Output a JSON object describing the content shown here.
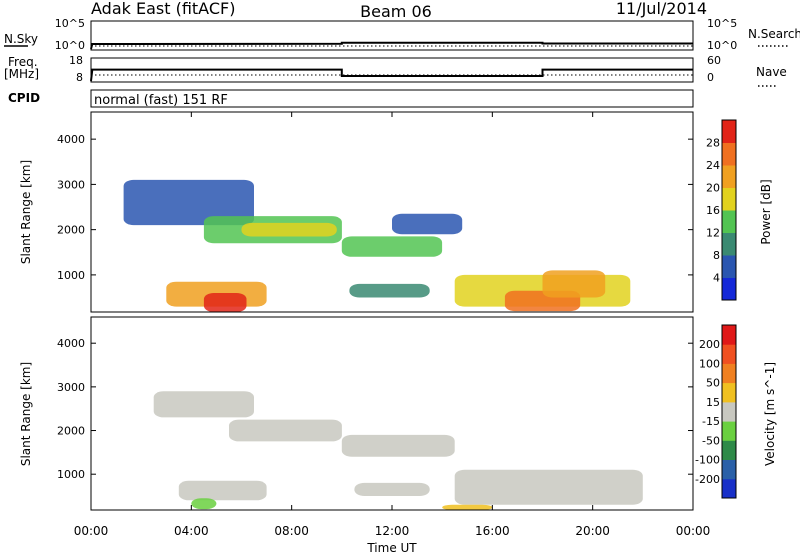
{
  "header": {
    "station": "Adak East (fitACF)",
    "beam": "Beam 06",
    "date": "11/Jul/2014"
  },
  "noise_panel": {
    "left_label": "N.Sky",
    "left_ticks": [
      "10^5",
      "10^0"
    ],
    "right_ticks": [
      "10^5",
      "10^0"
    ],
    "right_label": "N.Search"
  },
  "freq_panel": {
    "left_label_line1": "Freq.",
    "left_label_line2": "[MHz]",
    "left_ticks": [
      "18",
      "8"
    ],
    "right_ticks": [
      "60",
      "0"
    ],
    "right_label": "Nave"
  },
  "cpid_panel": {
    "label": "CPID",
    "text": "normal (fast) 151 RF"
  },
  "chart_data": [
    {
      "type": "line",
      "panel": "noise",
      "series": [
        {
          "name": "N.Sky",
          "x_hours": [
            0,
            0.05,
            10.0,
            10.0,
            18.0,
            18.0,
            24.0
          ],
          "values_log10": [
            0.0,
            1.0,
            1.05,
            1.25,
            1.25,
            1.1,
            1.1
          ]
        },
        {
          "name": "N.Search",
          "x_hours": [
            0,
            24
          ],
          "values_log10": [
            0.6,
            0.6
          ]
        }
      ]
    },
    {
      "type": "line",
      "panel": "frequency",
      "ylim": [
        8,
        18
      ],
      "series": [
        {
          "name": "Freq.",
          "x_hours": [
            0,
            0.05,
            10.0,
            10.0,
            18.0,
            18.0,
            24.0
          ],
          "values": [
            8,
            13.7,
            13.7,
            10.5,
            10.5,
            13.7,
            13.7
          ]
        },
        {
          "name": "Nave",
          "x_hours": [
            0,
            24
          ],
          "values": [
            18,
            18
          ]
        }
      ]
    },
    {
      "type": "heatmap",
      "panel": "power",
      "ylabel": "Slant Range [km]",
      "ylim": [
        180,
        4600
      ],
      "yticks": [
        1000,
        2000,
        3000,
        4000
      ],
      "colorbar_label": "Power [dB]",
      "colorbar_ticks": [
        4,
        8,
        12,
        16,
        20,
        24,
        28
      ],
      "colorbar_colors": [
        "#1428d8",
        "#2a56b0",
        "#3a8a72",
        "#52c452",
        "#e2d21e",
        "#f0a020",
        "#f07020",
        "#e22418"
      ],
      "regions": [
        {
          "t0": 1.3,
          "t1": 6.5,
          "r0": 2100,
          "r1": 3100,
          "level": 1
        },
        {
          "t0": 4.5,
          "t1": 10.0,
          "r0": 1700,
          "r1": 2300,
          "level": 3
        },
        {
          "t0": 6.0,
          "t1": 9.8,
          "r0": 1850,
          "r1": 2150,
          "level": 4
        },
        {
          "t0": 10.0,
          "t1": 14.0,
          "r0": 1400,
          "r1": 1850,
          "level": 3
        },
        {
          "t0": 12.0,
          "t1": 14.8,
          "r0": 1900,
          "r1": 2350,
          "level": 1
        },
        {
          "t0": 3.0,
          "t1": 7.0,
          "r0": 300,
          "r1": 850,
          "level": 5
        },
        {
          "t0": 4.5,
          "t1": 6.2,
          "r0": 180,
          "r1": 600,
          "level": 7
        },
        {
          "t0": 10.3,
          "t1": 13.5,
          "r0": 500,
          "r1": 800,
          "level": 2
        },
        {
          "t0": 14.5,
          "t1": 21.5,
          "r0": 300,
          "r1": 1000,
          "level": 4
        },
        {
          "t0": 16.5,
          "t1": 19.5,
          "r0": 200,
          "r1": 650,
          "level": 6
        },
        {
          "t0": 18.0,
          "t1": 20.5,
          "r0": 500,
          "r1": 1100,
          "level": 5
        }
      ]
    },
    {
      "type": "heatmap",
      "panel": "velocity",
      "ylabel": "Slant Range [km]",
      "ylim": [
        180,
        4600
      ],
      "yticks": [
        1000,
        2000,
        3000,
        4000
      ],
      "colorbar_label": "Velocity [m s^-1]",
      "colorbar_ticks": [
        "200",
        "100",
        "50",
        "15",
        "-15",
        "-50",
        "-100",
        "-200"
      ],
      "colorbar_colors": [
        "#1830c8",
        "#2a60a8",
        "#2e8a48",
        "#6ad040",
        "#c8c8c0",
        "#f0c020",
        "#f08020",
        "#f05020",
        "#e01818"
      ],
      "regions": [
        {
          "t0": 2.5,
          "t1": 6.5,
          "r0": 2300,
          "r1": 2900,
          "level": 4
        },
        {
          "t0": 5.5,
          "t1": 10.0,
          "r0": 1750,
          "r1": 2250,
          "level": 4
        },
        {
          "t0": 10.0,
          "t1": 14.5,
          "r0": 1400,
          "r1": 1900,
          "level": 4
        },
        {
          "t0": 3.5,
          "t1": 7.0,
          "r0": 400,
          "r1": 850,
          "level": 4
        },
        {
          "t0": 10.5,
          "t1": 13.5,
          "r0": 500,
          "r1": 800,
          "level": 4
        },
        {
          "t0": 14.5,
          "t1": 22.0,
          "r0": 300,
          "r1": 1100,
          "level": 4
        },
        {
          "t0": 4.0,
          "t1": 5.0,
          "r0": 200,
          "r1": 450,
          "level": 3
        },
        {
          "t0": 14.0,
          "t1": 16.0,
          "r0": 180,
          "r1": 300,
          "level": 5
        }
      ]
    }
  ],
  "x_axis": {
    "ticks": [
      "00:00",
      "04:00",
      "08:00",
      "12:00",
      "16:00",
      "20:00",
      "00:00"
    ],
    "label": "Time UT"
  }
}
